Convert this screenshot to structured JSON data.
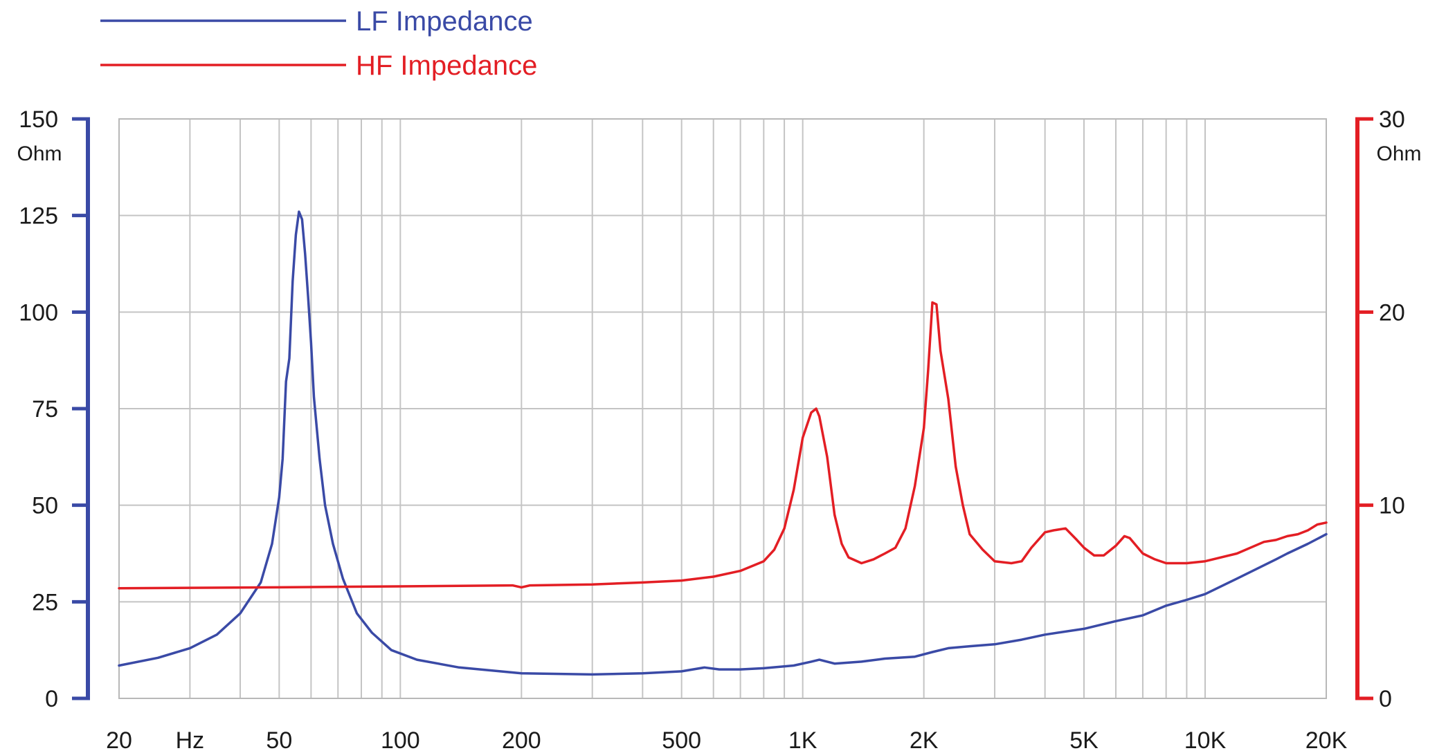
{
  "chart_data": {
    "type": "line",
    "x_scale": "log",
    "xlim": [
      20,
      20000
    ],
    "grid": true,
    "legend_position": "top-left",
    "x_ticks": [
      {
        "value": 20,
        "label": "20"
      },
      {
        "value": 30,
        "label": "Hz"
      },
      {
        "value": 50,
        "label": "50"
      },
      {
        "value": 100,
        "label": "100"
      },
      {
        "value": 200,
        "label": "200"
      },
      {
        "value": 500,
        "label": "500"
      },
      {
        "value": 1000,
        "label": "1K"
      },
      {
        "value": 2000,
        "label": "2K"
      },
      {
        "value": 5000,
        "label": "5K"
      },
      {
        "value": 10000,
        "label": "10K"
      },
      {
        "value": 20000,
        "label": "20K"
      }
    ],
    "x_gridlines": [
      20,
      30,
      40,
      50,
      60,
      70,
      80,
      90,
      100,
      200,
      300,
      400,
      500,
      600,
      700,
      800,
      900,
      1000,
      2000,
      3000,
      4000,
      5000,
      6000,
      7000,
      8000,
      9000,
      10000,
      20000
    ],
    "y_left": {
      "label": "Ohm",
      "lim": [
        0,
        150
      ],
      "ticks": [
        "0",
        "25",
        "50",
        "75",
        "100",
        "125",
        "150"
      ],
      "color": "#3a4aa6"
    },
    "y_right": {
      "label": "Ohm",
      "lim": [
        0,
        30
      ],
      "ticks": [
        "0",
        "10",
        "20",
        "30"
      ],
      "color": "#e31e24"
    },
    "series": [
      {
        "name": "LF Impedance",
        "axis": "left",
        "color": "#3a4aa6",
        "points": [
          [
            20,
            8.5
          ],
          [
            25,
            10.5
          ],
          [
            30,
            13
          ],
          [
            35,
            16.5
          ],
          [
            40,
            22
          ],
          [
            45,
            30
          ],
          [
            48,
            40
          ],
          [
            50,
            52
          ],
          [
            51,
            62
          ],
          [
            52,
            82
          ],
          [
            53,
            88
          ],
          [
            54,
            108
          ],
          [
            55,
            120
          ],
          [
            56,
            126
          ],
          [
            57,
            124
          ],
          [
            58,
            115
          ],
          [
            59,
            104
          ],
          [
            60,
            92
          ],
          [
            61,
            78
          ],
          [
            63,
            62
          ],
          [
            65,
            50
          ],
          [
            68,
            40
          ],
          [
            72,
            31
          ],
          [
            78,
            22
          ],
          [
            85,
            17
          ],
          [
            95,
            12.5
          ],
          [
            110,
            10
          ],
          [
            140,
            8
          ],
          [
            200,
            6.5
          ],
          [
            300,
            6.2
          ],
          [
            400,
            6.5
          ],
          [
            500,
            7
          ],
          [
            570,
            8
          ],
          [
            620,
            7.5
          ],
          [
            700,
            7.5
          ],
          [
            800,
            7.8
          ],
          [
            950,
            8.5
          ],
          [
            1050,
            9.5
          ],
          [
            1100,
            10
          ],
          [
            1200,
            9
          ],
          [
            1400,
            9.5
          ],
          [
            1600,
            10.3
          ],
          [
            1900,
            10.8
          ],
          [
            2100,
            12
          ],
          [
            2300,
            13
          ],
          [
            2600,
            13.5
          ],
          [
            3000,
            14
          ],
          [
            3500,
            15.2
          ],
          [
            4000,
            16.5
          ],
          [
            5000,
            18
          ],
          [
            6000,
            20
          ],
          [
            7000,
            21.5
          ],
          [
            8000,
            24
          ],
          [
            9000,
            25.5
          ],
          [
            10000,
            27
          ],
          [
            12000,
            31
          ],
          [
            15000,
            36
          ],
          [
            16000,
            37.5
          ],
          [
            18000,
            40
          ],
          [
            20000,
            42.5
          ]
        ]
      },
      {
        "name": "HF Impedance",
        "axis": "right",
        "color": "#e31e24",
        "points": [
          [
            20,
            5.7
          ],
          [
            50,
            5.75
          ],
          [
            100,
            5.8
          ],
          [
            190,
            5.85
          ],
          [
            200,
            5.75
          ],
          [
            210,
            5.85
          ],
          [
            300,
            5.9
          ],
          [
            400,
            6.0
          ],
          [
            500,
            6.1
          ],
          [
            600,
            6.3
          ],
          [
            700,
            6.6
          ],
          [
            800,
            7.1
          ],
          [
            850,
            7.7
          ],
          [
            900,
            8.8
          ],
          [
            950,
            10.8
          ],
          [
            1000,
            13.5
          ],
          [
            1050,
            14.8
          ],
          [
            1080,
            15.0
          ],
          [
            1100,
            14.6
          ],
          [
            1150,
            12.5
          ],
          [
            1200,
            9.5
          ],
          [
            1250,
            8.0
          ],
          [
            1300,
            7.3
          ],
          [
            1400,
            7.0
          ],
          [
            1500,
            7.2
          ],
          [
            1600,
            7.5
          ],
          [
            1700,
            7.8
          ],
          [
            1800,
            8.8
          ],
          [
            1900,
            11
          ],
          [
            2000,
            14
          ],
          [
            2050,
            17
          ],
          [
            2100,
            20.5
          ],
          [
            2150,
            20.4
          ],
          [
            2200,
            18
          ],
          [
            2300,
            15.5
          ],
          [
            2400,
            12
          ],
          [
            2500,
            10
          ],
          [
            2600,
            8.5
          ],
          [
            2800,
            7.7
          ],
          [
            3000,
            7.1
          ],
          [
            3300,
            7.0
          ],
          [
            3500,
            7.1
          ],
          [
            3700,
            7.8
          ],
          [
            4000,
            8.6
          ],
          [
            4200,
            8.7
          ],
          [
            4500,
            8.8
          ],
          [
            4800,
            8.2
          ],
          [
            5000,
            7.8
          ],
          [
            5300,
            7.4
          ],
          [
            5600,
            7.4
          ],
          [
            6000,
            7.9
          ],
          [
            6300,
            8.4
          ],
          [
            6500,
            8.3
          ],
          [
            7000,
            7.5
          ],
          [
            7500,
            7.2
          ],
          [
            8000,
            7.0
          ],
          [
            9000,
            7.0
          ],
          [
            10000,
            7.1
          ],
          [
            12000,
            7.5
          ],
          [
            14000,
            8.1
          ],
          [
            15000,
            8.2
          ],
          [
            16000,
            8.4
          ],
          [
            17000,
            8.5
          ],
          [
            18000,
            8.7
          ],
          [
            19000,
            9.0
          ],
          [
            20000,
            9.1
          ]
        ]
      }
    ]
  }
}
